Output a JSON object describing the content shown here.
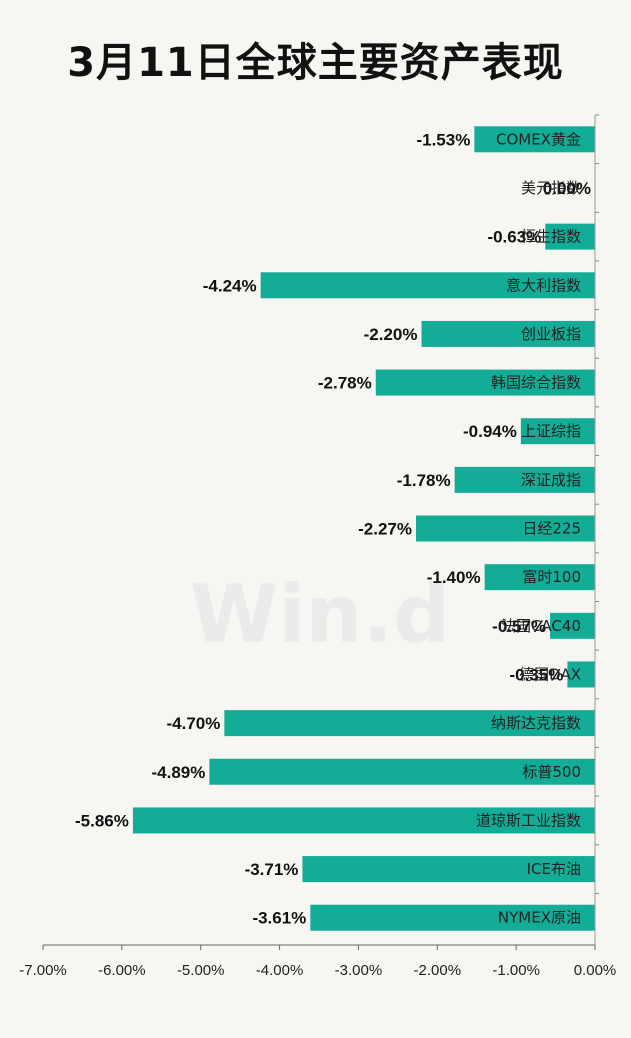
{
  "chart_data": {
    "type": "bar",
    "orientation": "horizontal",
    "title": "3月11日全球主要资产表现",
    "color": "#13ac96",
    "watermark": "Win.d",
    "categories": [
      "COMEX黄金",
      "美元指数",
      "恒生指数",
      "意大利指数",
      "创业板指",
      "韩国综合指数",
      "上证综指",
      "深证成指",
      "日经225",
      "富时100",
      "法国CAC40",
      "德国DAX",
      "纳斯达克指数",
      "标普500",
      "道琼斯工业指数",
      "ICE布油",
      "NYMEX原油"
    ],
    "values": [
      -1.53,
      0.0,
      -0.63,
      -4.24,
      -2.2,
      -2.78,
      -0.94,
      -1.78,
      -2.27,
      -1.4,
      -0.57,
      -0.35,
      -4.7,
      -4.89,
      -5.86,
      -3.71,
      -3.61
    ],
    "value_labels": [
      "-1.53%",
      "0.00%",
      "-0.63%",
      "-4.24%",
      "-2.20%",
      "-2.78%",
      "-0.94%",
      "-1.78%",
      "-2.27%",
      "-1.40%",
      "-0.57%",
      "-0.35%",
      "-4.70%",
      "-4.89%",
      "-5.86%",
      "-3.71%",
      "-3.61%"
    ],
    "x_ticks": [
      -7,
      -6,
      -5,
      -4,
      -3,
      -2,
      -1,
      0
    ],
    "x_tick_labels": [
      "-7.00%",
      "-6.00%",
      "-5.00%",
      "-4.00%",
      "-3.00%",
      "-2.00%",
      "-1.00%",
      "0.00%"
    ],
    "xlim": [
      -7,
      0
    ],
    "grid": false,
    "legend": "none"
  }
}
